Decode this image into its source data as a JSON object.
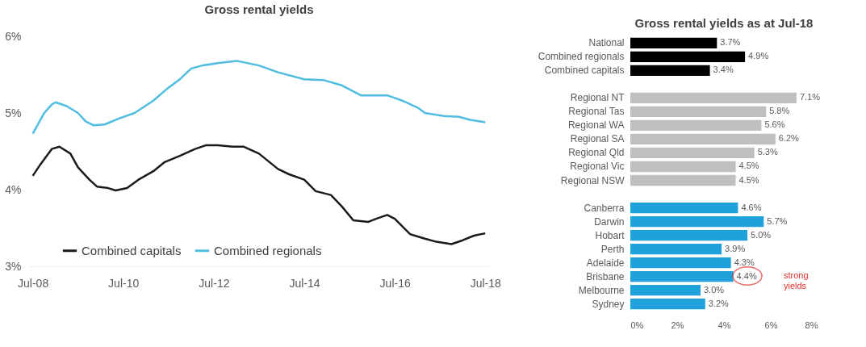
{
  "chart_data": [
    {
      "type": "line",
      "title": "Gross rental yields",
      "legend": "bottom left",
      "grid": false,
      "xlim": [
        "2008-06",
        "2018-08"
      ],
      "xticks": [
        {
          "value": "2008-07",
          "label": "Jul-08"
        },
        {
          "value": "2010-07",
          "label": "Jul-10"
        },
        {
          "value": "2012-07",
          "label": "Jul-12"
        },
        {
          "value": "2014-07",
          "label": "Jul-14"
        },
        {
          "value": "2016-07",
          "label": "Jul-16"
        },
        {
          "value": "2018-07",
          "label": "Jul-18"
        }
      ],
      "ylim": [
        3,
        6
      ],
      "yticks": [
        {
          "value": 3,
          "label": "3%"
        },
        {
          "value": 4,
          "label": "4%"
        },
        {
          "value": 5,
          "label": "5%"
        },
        {
          "value": 6,
          "label": "6%"
        }
      ],
      "series": [
        {
          "name": "Combined capitals",
          "color": "#1a1a1a",
          "x": [
            "2008-07",
            "2008-09",
            "2008-12",
            "2009-02",
            "2009-05",
            "2009-07",
            "2009-10",
            "2009-12",
            "2010-03",
            "2010-05",
            "2010-08",
            "2010-11",
            "2011-03",
            "2011-06",
            "2011-10",
            "2012-02",
            "2012-05",
            "2012-08",
            "2012-12",
            "2013-03",
            "2013-07",
            "2013-12",
            "2014-03",
            "2014-07",
            "2014-10",
            "2015-02",
            "2015-05",
            "2015-08",
            "2015-12",
            "2016-02",
            "2016-05",
            "2016-07",
            "2016-11",
            "2017-03",
            "2017-06",
            "2017-10",
            "2018-01",
            "2018-04",
            "2018-07"
          ],
          "values": [
            4.18,
            4.33,
            4.53,
            4.56,
            4.47,
            4.29,
            4.13,
            4.04,
            4.02,
            3.99,
            4.02,
            4.13,
            4.24,
            4.36,
            4.44,
            4.53,
            4.58,
            4.58,
            4.56,
            4.56,
            4.47,
            4.27,
            4.2,
            4.13,
            3.98,
            3.93,
            3.78,
            3.6,
            3.58,
            3.62,
            3.67,
            3.62,
            3.42,
            3.36,
            3.32,
            3.29,
            3.34,
            3.4,
            3.43
          ]
        },
        {
          "name": "Combined regionals",
          "color": "#4fbde0",
          "x": [
            "2008-07",
            "2008-08",
            "2008-10",
            "2008-12",
            "2009-01",
            "2009-04",
            "2009-07",
            "2009-09",
            "2009-11",
            "2010-02",
            "2010-06",
            "2010-10",
            "2011-03",
            "2011-07",
            "2011-10",
            "2012-01",
            "2012-04",
            "2012-08",
            "2013-01",
            "2013-07",
            "2013-12",
            "2014-07",
            "2014-12",
            "2015-05",
            "2015-10",
            "2016-05",
            "2016-09",
            "2017-01",
            "2017-03",
            "2017-08",
            "2017-12",
            "2018-03",
            "2018-07"
          ],
          "values": [
            4.73,
            4.82,
            5.0,
            5.11,
            5.14,
            5.09,
            5.0,
            4.89,
            4.84,
            4.85,
            4.93,
            5.0,
            5.16,
            5.33,
            5.44,
            5.58,
            5.62,
            5.65,
            5.68,
            5.62,
            5.53,
            5.44,
            5.43,
            5.36,
            5.23,
            5.23,
            5.16,
            5.07,
            5.0,
            4.96,
            4.95,
            4.91,
            4.88
          ]
        }
      ]
    },
    {
      "type": "bar",
      "orientation": "horizontal",
      "title": "Gross rental yields as at Jul-18",
      "categories": [
        "National",
        "Combined regionals",
        "Combined capitals",
        null,
        "Regional NT",
        "Regional Tas",
        "Regional WA",
        "Regional SA",
        "Regional Qld",
        "Regional Vic",
        "Regional NSW",
        null,
        "Canberra",
        "Darwin",
        "Hobart",
        "Perth",
        "Adelaide",
        "Brisbane",
        "Melbourne",
        "Sydney"
      ],
      "values": [
        3.7,
        4.9,
        3.4,
        null,
        7.1,
        5.8,
        5.6,
        6.2,
        5.3,
        4.5,
        4.5,
        null,
        4.6,
        5.7,
        5.0,
        3.9,
        4.3,
        4.4,
        3.0,
        3.2
      ],
      "value_labels": [
        "3.7%",
        "4.9%",
        "3.4%",
        null,
        "7.1%",
        "5.8%",
        "5.6%",
        "6.2%",
        "5.3%",
        "4.5%",
        "4.5%",
        null,
        "4.6%",
        "5.7%",
        "5.0%",
        "3.9%",
        "4.3%",
        "4.4%",
        "3.0%",
        "3.2%"
      ],
      "colors": [
        "#000000",
        "#000000",
        "#000000",
        null,
        "#bfbfbf",
        "#bfbfbf",
        "#bfbfbf",
        "#bfbfbf",
        "#bfbfbf",
        "#bfbfbf",
        "#bfbfbf",
        null,
        "#1fa2dc",
        "#1fa2dc",
        "#1fa2dc",
        "#1fa2dc",
        "#1fa2dc",
        "#1fa2dc",
        "#1fa2dc",
        "#1fa2dc"
      ],
      "xlim": [
        0,
        8
      ],
      "xticks": [
        {
          "value": 0,
          "label": "0%"
        },
        {
          "value": 2,
          "label": "2%"
        },
        {
          "value": 4,
          "label": "4%"
        },
        {
          "value": 6,
          "label": "6%"
        },
        {
          "value": 8,
          "label": "8%"
        }
      ],
      "annotations": [
        "strong yields"
      ]
    }
  ]
}
